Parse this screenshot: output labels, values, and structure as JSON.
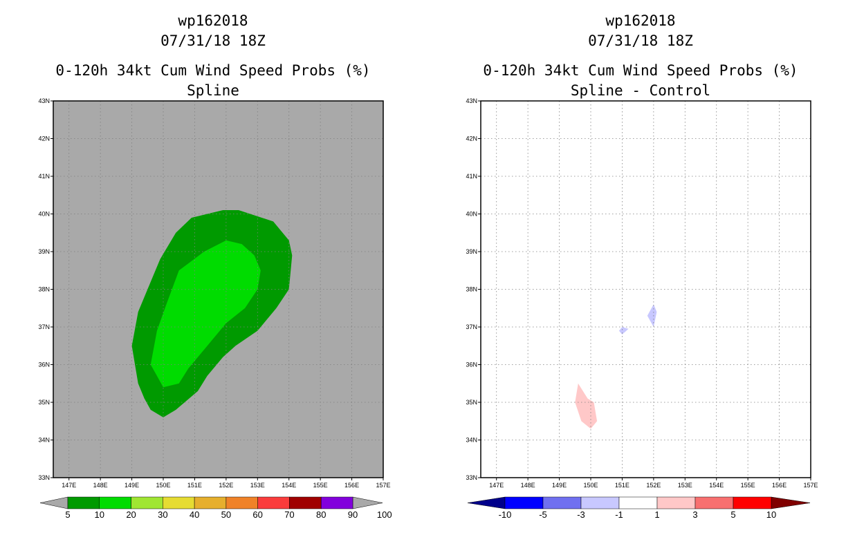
{
  "chart_data": [
    {
      "type": "contour-map",
      "storm_id": "wp162018",
      "datetime": "07/31/18 18Z",
      "title": "0-120h 34kt Cum Wind Speed Probs (%)",
      "subtitle": "Spline",
      "x_ticks": [
        "147E",
        "148E",
        "149E",
        "150E",
        "151E",
        "152E",
        "153E",
        "154E",
        "155E",
        "156E",
        "157E"
      ],
      "y_ticks": [
        "33N",
        "34N",
        "35N",
        "36N",
        "37N",
        "38N",
        "39N",
        "40N",
        "41N",
        "42N",
        "43N"
      ],
      "lon_range": [
        146.5,
        157
      ],
      "lat_range": [
        33,
        43
      ],
      "background_color": "#a9a9a9",
      "contours": [
        {
          "level": "5-10",
          "color": "#009a00",
          "polygon": [
            [
              150,
              34.6
            ],
            [
              149.6,
              34.8
            ],
            [
              149.4,
              35.1
            ],
            [
              149.2,
              35.5
            ],
            [
              149.1,
              36
            ],
            [
              149,
              36.5
            ],
            [
              149.2,
              37.4
            ],
            [
              149.5,
              38
            ],
            [
              149.9,
              38.8
            ],
            [
              150.4,
              39.5
            ],
            [
              150.9,
              39.9
            ],
            [
              151.9,
              40.1
            ],
            [
              152.4,
              40.1
            ],
            [
              153.5,
              39.8
            ],
            [
              154,
              39.3
            ],
            [
              154.1,
              38.9
            ],
            [
              154,
              38
            ],
            [
              153.6,
              37.5
            ],
            [
              153,
              36.9
            ],
            [
              152.3,
              36.5
            ],
            [
              151.9,
              36.2
            ],
            [
              151.4,
              35.7
            ],
            [
              151.1,
              35.3
            ],
            [
              150.4,
              34.8
            ]
          ]
        },
        {
          "level": "10-20",
          "color": "#00dc00",
          "polygon": [
            [
              150,
              35.4
            ],
            [
              149.8,
              35.7
            ],
            [
              149.6,
              36
            ],
            [
              149.8,
              36.9
            ],
            [
              150.1,
              37.6
            ],
            [
              150.5,
              38.5
            ],
            [
              151.3,
              39
            ],
            [
              152,
              39.3
            ],
            [
              152.5,
              39.2
            ],
            [
              152.9,
              38.9
            ],
            [
              153.1,
              38.5
            ],
            [
              153,
              38
            ],
            [
              152.6,
              37.5
            ],
            [
              152,
              37.1
            ],
            [
              151.3,
              36.4
            ],
            [
              150.8,
              35.9
            ],
            [
              150.5,
              35.5
            ]
          ]
        }
      ],
      "colorbar": {
        "labels": [
          "5",
          "10",
          "20",
          "30",
          "40",
          "50",
          "60",
          "70",
          "80",
          "90",
          "100"
        ],
        "colors": [
          "#009a00",
          "#00dc00",
          "#a0e632",
          "#e6dc32",
          "#e6af2d",
          "#f08228",
          "#fa3c3c",
          "#a00000",
          "#8200dc"
        ],
        "end_color": "#a9a9a9"
      }
    },
    {
      "type": "contour-map",
      "storm_id": "wp162018",
      "datetime": "07/31/18 18Z",
      "title": "0-120h 34kt Cum Wind Speed Probs (%)",
      "subtitle": "Spline - Control",
      "x_ticks": [
        "147E",
        "148E",
        "149E",
        "150E",
        "151E",
        "152E",
        "153E",
        "154E",
        "155E",
        "156E",
        "157E"
      ],
      "y_ticks": [
        "33N",
        "34N",
        "35N",
        "36N",
        "37N",
        "38N",
        "39N",
        "40N",
        "41N",
        "42N",
        "43N"
      ],
      "lon_range": [
        146.5,
        157
      ],
      "lat_range": [
        33,
        43
      ],
      "background_color": "#ffffff",
      "grid": true,
      "contours": [
        {
          "level": "-3 to -1",
          "color": "#c8c8ff",
          "polygon": [
            [
              151.8,
              37.3
            ],
            [
              152,
              37.6
            ],
            [
              152.1,
              37.4
            ],
            [
              152,
              37
            ]
          ]
        },
        {
          "level": "-3 to -1",
          "color": "#c8c8ff",
          "polygon": [
            [
              150.9,
              36.9
            ],
            [
              151,
              37
            ],
            [
              151.2,
              36.95
            ],
            [
              151,
              36.8
            ]
          ]
        },
        {
          "level": "1 to 3",
          "color": "#ffc8c8",
          "polygon": [
            [
              149.5,
              35
            ],
            [
              149.6,
              35.5
            ],
            [
              149.9,
              35.1
            ],
            [
              150.1,
              35
            ],
            [
              150.2,
              34.5
            ],
            [
              150,
              34.3
            ],
            [
              149.7,
              34.5
            ]
          ]
        }
      ],
      "colorbar": {
        "labels": [
          "-10",
          "-5",
          "-3",
          "-1",
          "1",
          "3",
          "5",
          "10"
        ],
        "colors": [
          "#0000ff",
          "#7070f0",
          "#c8c8ff",
          "#ffffff",
          "#ffc8c8",
          "#f87070",
          "#ff0000"
        ],
        "end_left_color": "#00008b",
        "end_right_color": "#800000"
      }
    }
  ]
}
